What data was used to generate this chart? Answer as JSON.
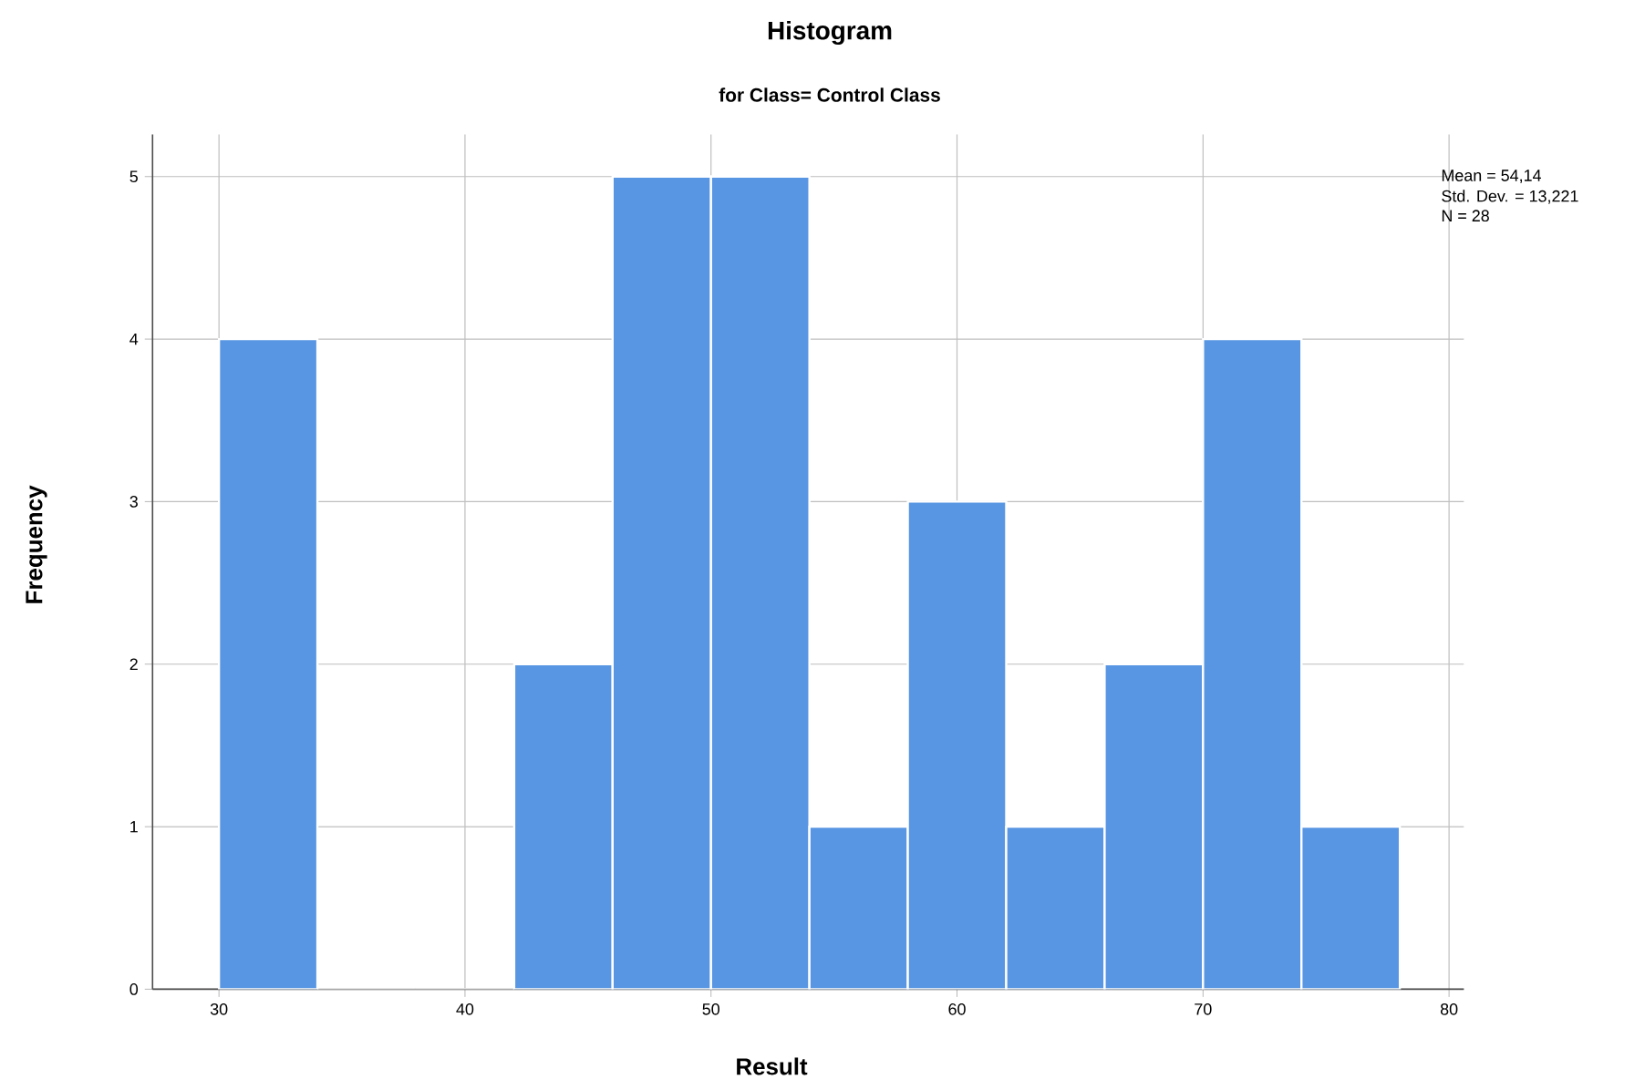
{
  "chart_data": {
    "type": "histogram",
    "title": "Histogram",
    "subtitle": "for Class= Control Class",
    "xlabel": "Result",
    "ylabel": "Frequency",
    "bins": [
      30,
      34,
      38,
      42,
      46,
      50,
      54,
      58,
      62,
      66,
      70,
      74,
      78
    ],
    "values": [
      4,
      0,
      0,
      2,
      5,
      5,
      1,
      3,
      1,
      2,
      4,
      1
    ],
    "color": "#5896e3",
    "xlim": [
      27.3,
      80.6
    ],
    "ylim": [
      0,
      5.26
    ],
    "xticks": [
      30,
      40,
      50,
      60,
      70,
      80
    ],
    "yticks": [
      0,
      1,
      2,
      3,
      4,
      5
    ],
    "grid": true,
    "annotations": [
      "Mean = 54,14",
      "Std. Dev. = 13,221",
      "N = 28"
    ]
  }
}
